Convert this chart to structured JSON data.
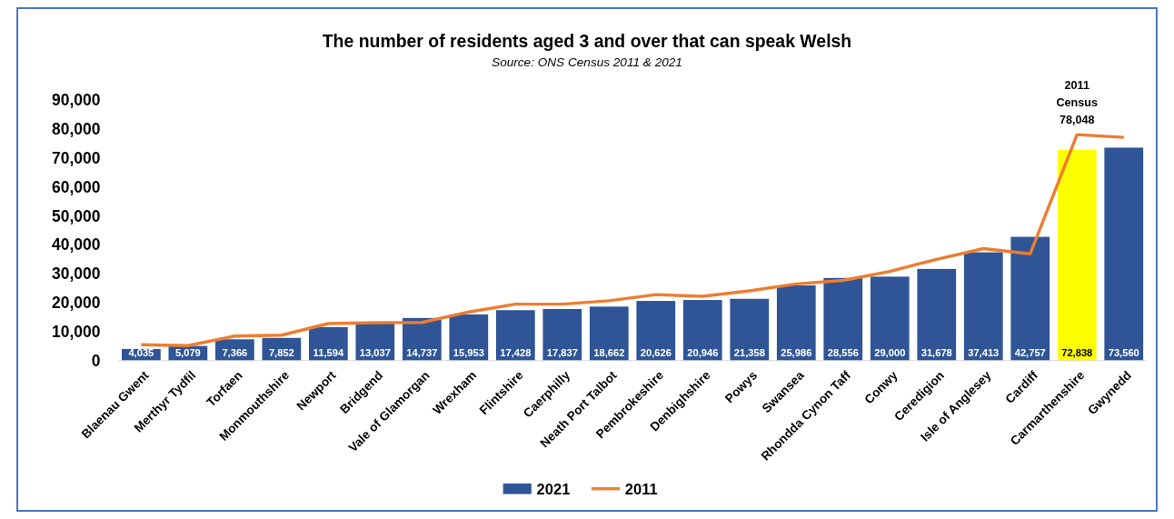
{
  "chart_data": {
    "type": "bar",
    "title": "The number of residents aged 3 and over that can speak Welsh",
    "subtitle": "Source: ONS Census 2011 & 2021",
    "categories": [
      "Blaenau Gwent",
      "Merthyr Tydfil",
      "Torfaen",
      "Monmouthshire",
      "Newport",
      "Bridgend",
      "Vale of Glamorgan",
      "Wrexham",
      "Flintshire",
      "Caerphilly",
      "Neath Port Talbot",
      "Pembrokeshire",
      "Denbighshire",
      "Powys",
      "Swansea",
      "Rhondda Cynon Taff",
      "Conwy",
      "Ceredigion",
      "Isle of Anglesey",
      "Cardiff",
      "Carmarthenshire",
      "Gwynedd"
    ],
    "series": [
      {
        "name": "2021",
        "color": "#2f5597",
        "value_labels": [
          "4,035",
          "5,079",
          "7,366",
          "7,852",
          "11,594",
          "13,037",
          "14,737",
          "15,953",
          "17,428",
          "17,837",
          "18,662",
          "20,626",
          "20,946",
          "21,358",
          "25,986",
          "28,556",
          "29,000",
          "31,678",
          "37,413",
          "42,757",
          "72,838",
          "73,560"
        ],
        "colors": [
          "#2f5597",
          "#2f5597",
          "#2f5597",
          "#2f5597",
          "#2f5597",
          "#2f5597",
          "#2f5597",
          "#2f5597",
          "#2f5597",
          "#2f5597",
          "#2f5597",
          "#2f5597",
          "#2f5597",
          "#2f5597",
          "#2f5597",
          "#2f5597",
          "#2f5597",
          "#2f5597",
          "#2f5597",
          "#2f5597",
          "#ffff00",
          "#2f5597"
        ],
        "values": [
          4035,
          5079,
          7366,
          7852,
          11594,
          13037,
          14737,
          15953,
          17428,
          17837,
          18662,
          20626,
          20946,
          21358,
          25986,
          28556,
          29000,
          31678,
          37413,
          42757,
          72838,
          73560
        ]
      },
      {
        "name": "2011",
        "type": "line",
        "color": "#ed7d31",
        "values": [
          5500,
          5200,
          8500,
          8800,
          12800,
          13100,
          13200,
          16800,
          19500,
          19500,
          20700,
          22800,
          22200,
          24100,
          26500,
          27700,
          30800,
          35000,
          38700,
          36900,
          78048,
          77100
        ]
      }
    ],
    "annotations": [
      {
        "text": "2011 Census 78,048",
        "x": "Carmarthenshire",
        "y": 78048
      }
    ],
    "ylim": [
      0,
      90000
    ],
    "yticks": [
      0,
      {
        "value": 10000,
        "label": "10,000"
      },
      {
        "value": 20000,
        "label": "20,000"
      },
      {
        "value": 30000,
        "label": "30,000"
      },
      {
        "value": 40000,
        "label": "40,000"
      },
      {
        "value": 50000,
        "label": "50,000"
      },
      {
        "value": 60000,
        "label": "60,000"
      },
      {
        "value": 70000,
        "label": "70,000"
      },
      {
        "value": 80000,
        "label": "80,000"
      },
      {
        "value": 90000,
        "label": "90,000"
      }
    ],
    "grid": false,
    "legend": "bottom",
    "marker": "none",
    "line_style": "solid"
  }
}
